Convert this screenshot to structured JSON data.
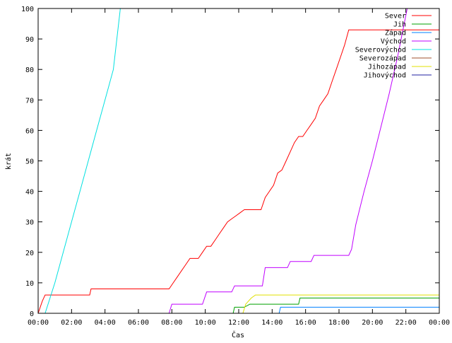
{
  "chart_data": {
    "type": "line",
    "title": "",
    "xlabel": "Čas",
    "ylabel": "krát",
    "xlim": [
      "00:00",
      "24:00"
    ],
    "ylim": [
      0,
      100
    ],
    "x_ticks": [
      "00:00",
      "02:00",
      "04:00",
      "06:00",
      "08:00",
      "10:00",
      "12:00",
      "14:00",
      "16:00",
      "18:00",
      "20:00",
      "22:00",
      "00:00"
    ],
    "y_ticks": [
      0,
      10,
      20,
      30,
      40,
      50,
      60,
      70,
      80,
      90,
      100
    ],
    "grid": false,
    "legend_position": "top-right",
    "series": [
      {
        "name": "Sever",
        "color": "#ff0000",
        "x": [
          "00:00",
          "00:15",
          "00:25",
          "03:05",
          "03:10",
          "07:50",
          "08:05",
          "08:20",
          "08:35",
          "08:50",
          "09:05",
          "09:35",
          "09:50",
          "10:05",
          "10:20",
          "10:35",
          "10:50",
          "11:05",
          "11:20",
          "11:35",
          "11:50",
          "12:05",
          "12:20",
          "13:20",
          "13:35",
          "13:50",
          "14:05",
          "14:20",
          "14:35",
          "14:50",
          "15:05",
          "15:20",
          "15:35",
          "15:50",
          "16:05",
          "16:20",
          "16:35",
          "16:50",
          "17:05",
          "17:20",
          "17:35",
          "17:50",
          "18:05",
          "18:20",
          "18:35",
          "24:00"
        ],
        "y": [
          0,
          4,
          6,
          6,
          8,
          8,
          10,
          12,
          14,
          16,
          18,
          18,
          20,
          22,
          22,
          24,
          26,
          28,
          30,
          31,
          32,
          33,
          34,
          34,
          38,
          40,
          42,
          46,
          47,
          50,
          53,
          56,
          58,
          58,
          60,
          62,
          64,
          68,
          70,
          72,
          76,
          80,
          84,
          88,
          93,
          93
        ]
      },
      {
        "name": "Jih",
        "color": "#00a000",
        "x": [
          "00:00",
          "11:40",
          "11:45",
          "12:20",
          "12:40",
          "15:35",
          "15:40",
          "24:00"
        ],
        "y": [
          0,
          0,
          2,
          2,
          3,
          3,
          5,
          5
        ]
      },
      {
        "name": "Západ",
        "color": "#0080ff",
        "x": [
          "00:00",
          "14:25",
          "14:30",
          "24:00"
        ],
        "y": [
          0,
          0,
          2,
          2
        ]
      },
      {
        "name": "Východ",
        "color": "#c000ff",
        "x": [
          "00:00",
          "07:50",
          "08:00",
          "09:50",
          "10:05",
          "11:35",
          "11:45",
          "13:25",
          "13:35",
          "14:55",
          "15:05",
          "16:20",
          "16:30",
          "18:35",
          "18:45",
          "19:00",
          "19:30",
          "20:00",
          "20:30",
          "21:00",
          "21:30",
          "22:05",
          "24:00"
        ],
        "y": [
          0,
          0,
          3,
          3,
          7,
          7,
          9,
          9,
          15,
          15,
          17,
          17,
          19,
          19,
          21,
          29,
          40,
          50,
          61,
          72,
          84,
          100,
          100
        ]
      },
      {
        "name": "Severovýchod",
        "color": "#00e0e0",
        "x": [
          "00:00",
          "00:25",
          "01:00",
          "01:30",
          "02:00",
          "02:30",
          "03:00",
          "03:30",
          "04:00",
          "04:30",
          "04:55"
        ],
        "y": [
          0,
          0,
          10,
          20,
          30,
          40,
          50,
          60,
          70,
          80,
          100
        ]
      },
      {
        "name": "Severozápad",
        "color": "#a0522d",
        "x": [],
        "y": []
      },
      {
        "name": "Jihozápad",
        "color": "#e0e000",
        "x": [
          "00:00",
          "12:15",
          "12:25",
          "12:45",
          "13:00",
          "24:00"
        ],
        "y": [
          0,
          0,
          3,
          5,
          6,
          6
        ]
      },
      {
        "name": "Jihovýchod",
        "color": "#2020a0",
        "x": [],
        "y": []
      }
    ]
  }
}
